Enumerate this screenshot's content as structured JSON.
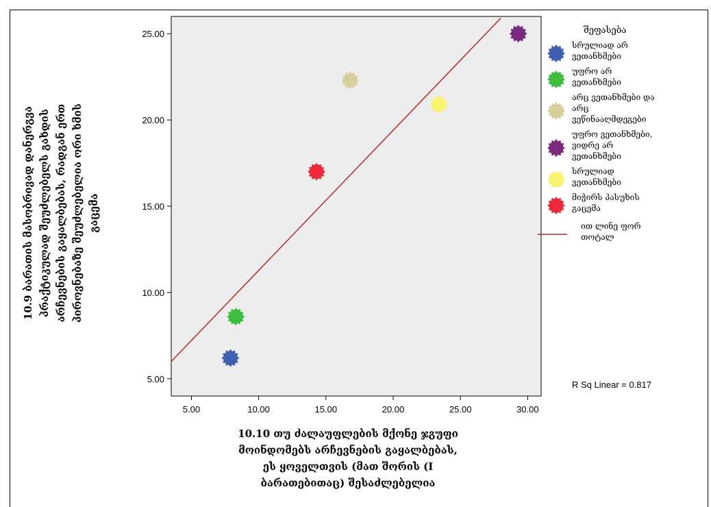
{
  "chart_data": {
    "type": "scatter",
    "title": "",
    "xlabel_lines": [
      "10.10 თუ ძალაუფლების მქონე ჯგუფი",
      "მოინდომებს არჩევნების გაყალბებას,",
      "ეს ყოველთვის (მათ შორის (I",
      "ბარათებითაც) შესაძლებელია"
    ],
    "ylabel_lines": [
      "10.9 ბარათის მასობრივად დანერგვა",
      "პრაქტიკულად შეუძლებელს გახდის",
      "არჩევნების გაყალბებას, რადგან ერთ",
      "პიროვნებაზე შეუძლებელია ორი ხმის",
      "გაცემა"
    ],
    "xlim": [
      3.5,
      31.0
    ],
    "ylim": [
      4.0,
      26.0
    ],
    "x_ticks": [
      "5.00",
      "10.00",
      "15.00",
      "20.00",
      "25.00",
      "30.00"
    ],
    "y_ticks": [
      "5.00",
      "10.00",
      "15.00",
      "20.00",
      "25.00"
    ],
    "grid": false,
    "legend_position": "right",
    "legend_title": "შეფასება",
    "series": [
      {
        "name": "სრულიად არ ვეთანხმები",
        "label_lines": [
          "სრულიად არ",
          "ვეთანხმები"
        ],
        "color": "#3F5FB3",
        "x": 7.9,
        "y": 6.2
      },
      {
        "name": "უფრო არ ვეთანხმები",
        "label_lines": [
          "უფრო არ",
          "ვეთანხმები"
        ],
        "color": "#3DBE3D",
        "x": 8.3,
        "y": 8.6
      },
      {
        "name": "არც ვეთანხმები და არც ვეწინააღმდეგები",
        "label_lines": [
          "არც ვეთანხმები და",
          "არც",
          "ვეწინააღმდეგები"
        ],
        "color": "#D8D09C",
        "x": 16.8,
        "y": 22.3
      },
      {
        "name": "უფრო ვეთანხმები, ვიდრე არ ვეთანხმები",
        "label_lines": [
          "უფრო ვეთანხმები,",
          "ვიდრე არ",
          "ვეთანხმები"
        ],
        "color": "#7A2A7E",
        "x": 29.3,
        "y": 25.0
      },
      {
        "name": "სრულიად ვეთანხმები",
        "label_lines": [
          "სრულიად",
          "ვეთანხმები"
        ],
        "color": "#F8F36A",
        "x": 23.4,
        "y": 20.9
      },
      {
        "name": "მიჭირს პასუხის გაცემა",
        "label_lines": [
          "მიჭირს პასუხის",
          "გაცემა"
        ],
        "color": "#EE2A3A",
        "x": 14.3,
        "y": 17.0
      }
    ],
    "fit_line": {
      "label_lines": [
        "ით ლინე ფორ",
        "თოტალ"
      ],
      "color": "#B22A2A",
      "x": [
        3.5,
        28.0
      ],
      "y": [
        6.0,
        25.9
      ]
    },
    "annotation": "R Sq Linear = 0.817"
  }
}
